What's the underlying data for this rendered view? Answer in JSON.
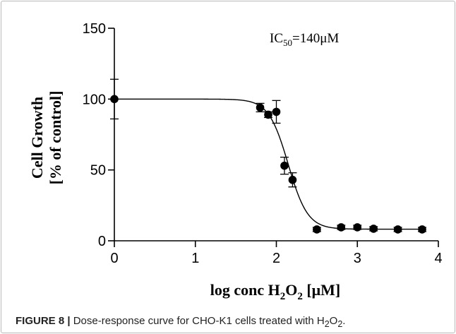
{
  "chart_data": {
    "type": "scatter",
    "xlabel": "log conc H2O2 [μM]",
    "ylabel_line1": "Cell Growth",
    "ylabel_line2": "[% of control]",
    "xlim": [
      0,
      4
    ],
    "ylim": [
      0,
      150
    ],
    "x_ticks": [
      "0",
      "1",
      "2",
      "3",
      "4"
    ],
    "y_ticks": [
      "0",
      "50",
      "100",
      "150"
    ],
    "annotation": "IC50=140μM",
    "annotation_base": "IC",
    "annotation_sub": "50",
    "annotation_rest": "=140μM",
    "grid": false,
    "series": [
      {
        "points": [
          {
            "x": 0.0,
            "y": 100,
            "err": 14
          },
          {
            "x": 1.8,
            "y": 94,
            "err": 3
          },
          {
            "x": 1.9,
            "y": 89,
            "err": 2
          },
          {
            "x": 2.0,
            "y": 91,
            "err": 8
          },
          {
            "x": 2.1,
            "y": 53,
            "err": 6
          },
          {
            "x": 2.2,
            "y": 43,
            "err": 5
          },
          {
            "x": 2.5,
            "y": 8,
            "err": 1.5
          },
          {
            "x": 2.8,
            "y": 9.5,
            "err": 1.5
          },
          {
            "x": 3.0,
            "y": 9.5,
            "err": 1.5
          },
          {
            "x": 3.2,
            "y": 8.5,
            "err": 1.5
          },
          {
            "x": 3.5,
            "y": 8,
            "err": 1.5
          },
          {
            "x": 3.8,
            "y": 8,
            "err": 1.5
          }
        ]
      }
    ],
    "fit_curve": {
      "top": 100,
      "bottom": 8.2,
      "log_ic50": 2.146,
      "hill_slope": -3.6
    }
  },
  "caption": {
    "label": "FIGURE 8 |",
    "text_before": " Dose-response curve for CHO-K1 cells treated with H",
    "sub1": "2",
    "text_mid": "O",
    "sub2": "2",
    "text_end": "."
  }
}
